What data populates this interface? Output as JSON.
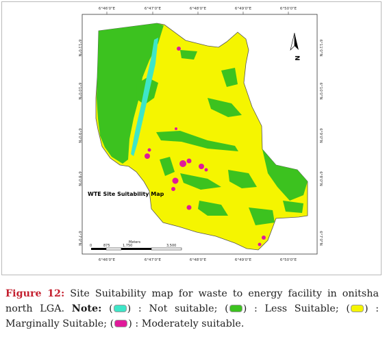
{
  "map": {
    "title": "WTE Site Suitability Map",
    "top_ticks": [
      "6°46'0\"E",
      "6°47'0\"E",
      "6°48'0\"E",
      "6°49'0\"E",
      "6°50'0\"E"
    ],
    "bottom_ticks": [
      "6°46'0\"E",
      "6°47'0\"E",
      "6°48'0\"E",
      "6°49'0\"E",
      "6°50'0\"E"
    ],
    "left_ticks": [
      "6°11'0\"N",
      "6°10'0\"N",
      "6°9'0\"N",
      "6°8'0\"N",
      "6°7'0\"N"
    ],
    "right_ticks": [
      "6°11'0\"N",
      "6°10'0\"N",
      "6°9'0\"N",
      "6°8'0\"N",
      "6°7'0\"N"
    ],
    "north_label": "N",
    "scale": {
      "unit": "Meters",
      "labels": [
        "0",
        "875",
        "1,750",
        "3,500"
      ]
    },
    "colors": {
      "not_suitable": "#3ee6c8",
      "less_suitable": "#3cc21f",
      "marginally_suitable": "#f5f500",
      "moderately_suitable": "#e0199a"
    }
  },
  "caption": {
    "figure_label": "Figure 12:",
    "text": " Site Suitability map for waste to energy facility in onitsha north LGA. ",
    "note_label": "Note:",
    "legend": [
      {
        "label": "Not suitable;",
        "color": "#3ee6c8"
      },
      {
        "label": "Less Suitable;",
        "color": "#3cc21f"
      },
      {
        "label": "Marginally Suitable;",
        "color": "#f5f500"
      },
      {
        "label": "Moderately suitable.",
        "color": "#e0199a"
      }
    ]
  }
}
